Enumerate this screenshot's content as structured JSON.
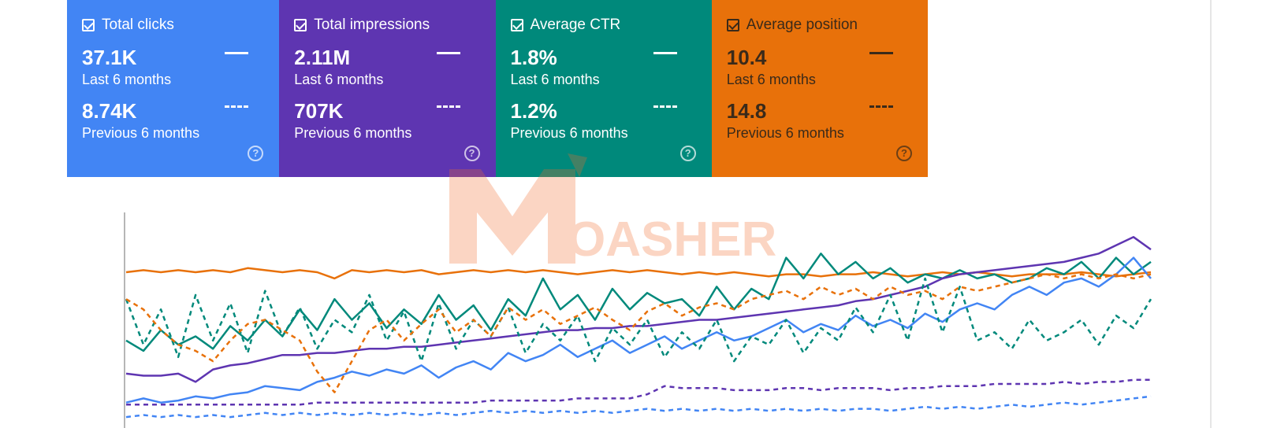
{
  "cards": [
    {
      "title": "Total clicks",
      "current_value": "37.1K",
      "current_label": "Last 6 months",
      "previous_value": "8.74K",
      "previous_label": "Previous 6 months",
      "color": "#4285f4",
      "checked": true
    },
    {
      "title": "Total impressions",
      "current_value": "2.11M",
      "current_label": "Last 6 months",
      "previous_value": "707K",
      "previous_label": "Previous 6 months",
      "color": "#5e35b1",
      "checked": true
    },
    {
      "title": "Average CTR",
      "current_value": "1.8%",
      "current_label": "Last 6 months",
      "previous_value": "1.2%",
      "previous_label": "Previous 6 months",
      "color": "#00897b",
      "checked": true
    },
    {
      "title": "Average position",
      "current_value": "10.4",
      "current_label": "Last 6 months",
      "previous_value": "14.8",
      "previous_label": "Previous 6 months",
      "color": "#e8710a",
      "checked": true
    }
  ],
  "help_glyph": "?",
  "watermark": {
    "text": "OASHER",
    "color": "#f26b2a"
  },
  "chart_data": {
    "type": "line",
    "series": [
      {
        "key": "position_current",
        "color": "#e8710a",
        "style": "solid",
        "values": [
          0.73,
          0.74,
          0.73,
          0.74,
          0.73,
          0.74,
          0.73,
          0.75,
          0.74,
          0.73,
          0.74,
          0.73,
          0.7,
          0.74,
          0.73,
          0.74,
          0.73,
          0.74,
          0.72,
          0.73,
          0.74,
          0.73,
          0.74,
          0.73,
          0.74,
          0.73,
          0.72,
          0.73,
          0.74,
          0.73,
          0.74,
          0.73,
          0.72,
          0.73,
          0.72,
          0.73,
          0.72,
          0.71,
          0.72,
          0.72,
          0.71,
          0.72,
          0.72,
          0.73,
          0.72,
          0.71,
          0.72,
          0.73,
          0.72,
          0.73,
          0.72,
          0.71,
          0.72,
          0.72,
          0.72,
          0.73,
          0.72,
          0.71,
          0.72,
          0.73
        ]
      },
      {
        "key": "ctr_current",
        "color": "#00897b",
        "style": "solid",
        "values": [
          0.4,
          0.35,
          0.45,
          0.38,
          0.42,
          0.36,
          0.47,
          0.4,
          0.5,
          0.42,
          0.55,
          0.45,
          0.6,
          0.5,
          0.58,
          0.46,
          0.55,
          0.48,
          0.62,
          0.5,
          0.57,
          0.45,
          0.6,
          0.52,
          0.7,
          0.55,
          0.62,
          0.5,
          0.65,
          0.55,
          0.63,
          0.58,
          0.6,
          0.52,
          0.66,
          0.55,
          0.65,
          0.6,
          0.8,
          0.7,
          0.82,
          0.72,
          0.78,
          0.7,
          0.75,
          0.68,
          0.72,
          0.7,
          0.74,
          0.7,
          0.72,
          0.68,
          0.7,
          0.75,
          0.72,
          0.78,
          0.7,
          0.8,
          0.72,
          0.78
        ]
      },
      {
        "key": "impressions_current",
        "color": "#5e35b1",
        "style": "solid",
        "values": [
          0.24,
          0.23,
          0.23,
          0.24,
          0.2,
          0.26,
          0.28,
          0.29,
          0.31,
          0.33,
          0.33,
          0.34,
          0.34,
          0.35,
          0.36,
          0.36,
          0.37,
          0.37,
          0.38,
          0.39,
          0.4,
          0.41,
          0.42,
          0.43,
          0.44,
          0.45,
          0.45,
          0.46,
          0.46,
          0.47,
          0.47,
          0.48,
          0.49,
          0.5,
          0.5,
          0.51,
          0.52,
          0.53,
          0.54,
          0.55,
          0.56,
          0.57,
          0.59,
          0.6,
          0.62,
          0.64,
          0.66,
          0.7,
          0.72,
          0.73,
          0.74,
          0.75,
          0.76,
          0.77,
          0.78,
          0.8,
          0.82,
          0.86,
          0.9,
          0.84
        ]
      },
      {
        "key": "clicks_current",
        "color": "#4285f4",
        "style": "solid",
        "values": [
          0.1,
          0.12,
          0.1,
          0.11,
          0.13,
          0.12,
          0.14,
          0.15,
          0.18,
          0.17,
          0.16,
          0.2,
          0.22,
          0.25,
          0.23,
          0.26,
          0.24,
          0.28,
          0.22,
          0.27,
          0.3,
          0.26,
          0.34,
          0.3,
          0.33,
          0.38,
          0.32,
          0.36,
          0.4,
          0.34,
          0.38,
          0.42,
          0.36,
          0.4,
          0.44,
          0.4,
          0.42,
          0.46,
          0.5,
          0.44,
          0.48,
          0.45,
          0.52,
          0.47,
          0.5,
          0.46,
          0.53,
          0.49,
          0.55,
          0.58,
          0.55,
          0.62,
          0.66,
          0.62,
          0.68,
          0.7,
          0.66,
          0.72,
          0.8,
          0.7
        ]
      },
      {
        "key": "ctr_previous",
        "color": "#00897b",
        "style": "dashed",
        "values": [
          0.6,
          0.38,
          0.55,
          0.32,
          0.62,
          0.4,
          0.58,
          0.34,
          0.64,
          0.42,
          0.56,
          0.36,
          0.5,
          0.44,
          0.62,
          0.4,
          0.54,
          0.3,
          0.58,
          0.36,
          0.5,
          0.42,
          0.56,
          0.34,
          0.48,
          0.4,
          0.52,
          0.3,
          0.46,
          0.38,
          0.5,
          0.32,
          0.44,
          0.36,
          0.5,
          0.3,
          0.42,
          0.38,
          0.5,
          0.34,
          0.46,
          0.4,
          0.56,
          0.44,
          0.62,
          0.4,
          0.7,
          0.44,
          0.66,
          0.4,
          0.44,
          0.36,
          0.5,
          0.4,
          0.44,
          0.5,
          0.38,
          0.52,
          0.46,
          0.6
        ]
      },
      {
        "key": "position_previous",
        "color": "#e8710a",
        "style": "dashed",
        "values": [
          0.6,
          0.55,
          0.45,
          0.38,
          0.35,
          0.3,
          0.4,
          0.48,
          0.5,
          0.45,
          0.4,
          0.25,
          0.15,
          0.3,
          0.45,
          0.5,
          0.4,
          0.48,
          0.55,
          0.44,
          0.5,
          0.42,
          0.56,
          0.5,
          0.55,
          0.48,
          0.52,
          0.56,
          0.5,
          0.45,
          0.54,
          0.58,
          0.52,
          0.56,
          0.58,
          0.55,
          0.6,
          0.62,
          0.64,
          0.6,
          0.66,
          0.62,
          0.65,
          0.6,
          0.66,
          0.62,
          0.64,
          0.6,
          0.66,
          0.64,
          0.66,
          0.68,
          0.7,
          0.72,
          0.7,
          0.72,
          0.7,
          0.72,
          0.7,
          0.72
        ]
      },
      {
        "key": "impressions_previous",
        "color": "#5e35b1",
        "style": "dashed",
        "values": [
          0.09,
          0.09,
          0.09,
          0.09,
          0.09,
          0.09,
          0.09,
          0.09,
          0.09,
          0.09,
          0.09,
          0.1,
          0.1,
          0.1,
          0.1,
          0.1,
          0.1,
          0.1,
          0.1,
          0.1,
          0.1,
          0.11,
          0.11,
          0.11,
          0.11,
          0.11,
          0.12,
          0.12,
          0.12,
          0.12,
          0.14,
          0.18,
          0.17,
          0.17,
          0.17,
          0.16,
          0.16,
          0.16,
          0.17,
          0.17,
          0.16,
          0.17,
          0.17,
          0.17,
          0.16,
          0.17,
          0.17,
          0.18,
          0.18,
          0.18,
          0.19,
          0.19,
          0.19,
          0.19,
          0.2,
          0.19,
          0.2,
          0.2,
          0.21,
          0.21
        ]
      },
      {
        "key": "clicks_previous",
        "color": "#4285f4",
        "style": "dashed",
        "values": [
          0.03,
          0.04,
          0.03,
          0.04,
          0.03,
          0.04,
          0.03,
          0.04,
          0.05,
          0.04,
          0.05,
          0.04,
          0.05,
          0.04,
          0.05,
          0.04,
          0.05,
          0.04,
          0.05,
          0.04,
          0.05,
          0.06,
          0.05,
          0.06,
          0.05,
          0.06,
          0.05,
          0.06,
          0.05,
          0.06,
          0.07,
          0.06,
          0.07,
          0.06,
          0.07,
          0.06,
          0.07,
          0.06,
          0.07,
          0.06,
          0.07,
          0.06,
          0.07,
          0.07,
          0.06,
          0.07,
          0.08,
          0.07,
          0.08,
          0.07,
          0.08,
          0.09,
          0.08,
          0.09,
          0.1,
          0.09,
          0.1,
          0.11,
          0.12,
          0.13
        ]
      }
    ]
  }
}
